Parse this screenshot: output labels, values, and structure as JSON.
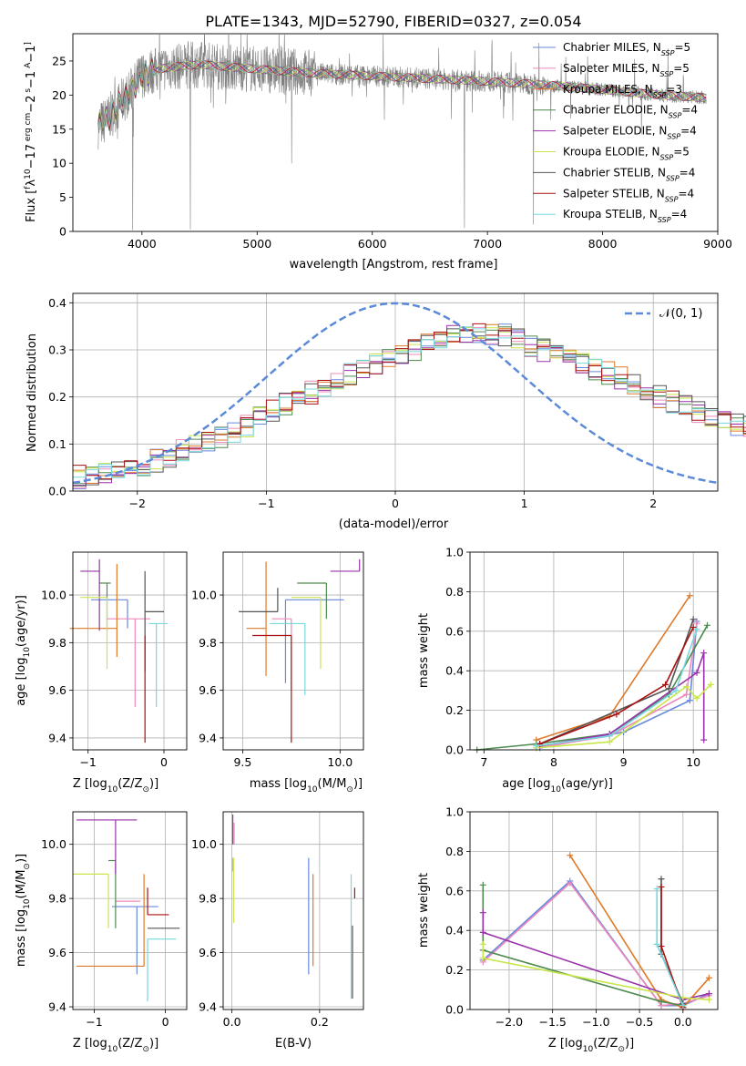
{
  "title": "PLATE=1343, MJD=52790, FIBERID=0327, z=0.054",
  "models": [
    {
      "name": "Chabrier MILES",
      "nssp": "5",
      "color": "#6688dd"
    },
    {
      "name": "Salpeter MILES",
      "nssp": "5",
      "color": "#ee88bb"
    },
    {
      "name": "Kroupa MILES",
      "nssp": "3",
      "color": "#e07a28"
    },
    {
      "name": "Chabrier ELODIE",
      "nssp": "4",
      "color": "#4f8a4f"
    },
    {
      "name": "Salpeter ELODIE",
      "nssp": "4",
      "color": "#9933aa"
    },
    {
      "name": "Kroupa ELODIE",
      "nssp": "5",
      "color": "#c8e64a"
    },
    {
      "name": "Chabrier STELIB",
      "nssp": "4",
      "color": "#555555"
    },
    {
      "name": "Salpeter STELIB",
      "nssp": "4",
      "color": "#aa1111"
    },
    {
      "name": "Kroupa STELIB",
      "nssp": "4",
      "color": "#77d8dd"
    }
  ],
  "chart_data": [
    {
      "id": "spectrum",
      "type": "line",
      "xlabel": "wavelength [Angstrom, rest frame]",
      "ylabel_parts": [
        "Flux [",
        "f",
        "λ",
        "10",
        "−17",
        " erg cm",
        "−2",
        " s",
        "−1",
        " A",
        "−1",
        "]"
      ],
      "xlim": [
        3400,
        9000
      ],
      "ylim": [
        0,
        29
      ],
      "xticks": [
        4000,
        5000,
        6000,
        7000,
        8000,
        9000
      ],
      "yticks": [
        0,
        5,
        10,
        15,
        20,
        25
      ],
      "legend_placement": "right",
      "nssp_label": [
        "N",
        "SSP",
        "="
      ],
      "data_color": "#808080",
      "continuum_x": [
        3620,
        3700,
        3800,
        3900,
        4000,
        4200,
        4500,
        5000,
        5500,
        6000,
        6500,
        7000,
        7500,
        8000,
        8500,
        8900
      ],
      "continuum_y": [
        15.5,
        16.5,
        18.5,
        20.5,
        23.0,
        24.0,
        24.5,
        23.8,
        23.2,
        22.8,
        22.4,
        22.0,
        21.5,
        20.8,
        20.0,
        19.6
      ],
      "data_dips": [
        [
          3920,
          0.2
        ],
        [
          4420,
          0.3
        ],
        [
          5300,
          10.0
        ],
        [
          6800,
          0.5
        ],
        [
          7400,
          1.0
        ]
      ]
    },
    {
      "id": "residuals",
      "type": "histogram",
      "xlabel": "(data-model)/error",
      "ylabel": "Normed distribution",
      "xlim": [
        -2.5,
        2.5
      ],
      "ylim": [
        0,
        0.42
      ],
      "xticks": [
        -2,
        -1,
        0,
        1,
        2
      ],
      "yticks": [
        0.0,
        0.1,
        0.2,
        0.3,
        0.4
      ],
      "grid": true,
      "legend_placement": "top-right",
      "gauss_label": "𝒩(0, 1)",
      "gauss_color": "#5b8ad8",
      "bin_width": 0.1,
      "hist_envelope": [
        0.03,
        0.035,
        0.04,
        0.045,
        0.05,
        0.055,
        0.065,
        0.075,
        0.085,
        0.095,
        0.105,
        0.115,
        0.125,
        0.14,
        0.155,
        0.17,
        0.185,
        0.2,
        0.21,
        0.22,
        0.235,
        0.25,
        0.26,
        0.27,
        0.28,
        0.29,
        0.3,
        0.31,
        0.32,
        0.33,
        0.34,
        0.34,
        0.335,
        0.33,
        0.32,
        0.31,
        0.3,
        0.29,
        0.28,
        0.27,
        0.26,
        0.25,
        0.24,
        0.225,
        0.21,
        0.2,
        0.19,
        0.18,
        0.17,
        0.16,
        0.15,
        0.14,
        0.135,
        0.13,
        0.12,
        0.11,
        0.105,
        0.1,
        0.09,
        0.085,
        0.075,
        0.07,
        0.065,
        0.055,
        0.05,
        0.045,
        0.04,
        0.035,
        0.03,
        0.03
      ]
    },
    {
      "id": "age_vs_Z",
      "type": "errorbar",
      "xlabel": [
        "Z [log",
        "10",
        "(Z/Z",
        "⊙",
        ")]"
      ],
      "ylabel": [
        "age  [log",
        "10",
        "(age/yr)]"
      ],
      "xlim": [
        -1.2,
        0.3
      ],
      "ylim": [
        9.35,
        10.18
      ],
      "xticks": [
        -1,
        0
      ],
      "yticks": [
        9.4,
        9.6,
        9.8,
        10.0
      ],
      "points": [
        {
          "x": -0.48,
          "xerr": [
            0.48,
            0.0
          ],
          "y": 9.98,
          "yerr": [
            0.12,
            0.0
          ]
        },
        {
          "x": -0.38,
          "xerr": [
            0.38,
            0.2
          ],
          "y": 9.9,
          "yerr": [
            0.37,
            0.0
          ]
        },
        {
          "x": -0.62,
          "xerr": [
            0.62,
            0.0
          ],
          "y": 9.86,
          "yerr": [
            0.12,
            0.27
          ]
        },
        {
          "x": -0.75,
          "xerr": [
            0.1,
            0.05
          ],
          "y": 10.05,
          "yerr": [
            0.2,
            0.0
          ]
        },
        {
          "x": -0.85,
          "xerr": [
            0.25,
            0.0
          ],
          "y": 10.1,
          "yerr": [
            0.25,
            0.05
          ]
        },
        {
          "x": -0.75,
          "xerr": [
            0.35,
            0.0
          ],
          "y": 9.99,
          "yerr": [
            0.3,
            0.0
          ]
        },
        {
          "x": -0.25,
          "xerr": [
            0.0,
            0.25
          ],
          "y": 9.93,
          "yerr": [
            0.25,
            0.17
          ]
        },
        {
          "x": -0.25,
          "xerr": [
            0.0,
            0.0
          ],
          "y": 9.83,
          "yerr": [
            0.45,
            0.0
          ]
        },
        {
          "x": -0.1,
          "xerr": [
            0.1,
            0.15
          ],
          "y": 9.88,
          "yerr": [
            0.35,
            0.0
          ]
        }
      ]
    },
    {
      "id": "age_vs_mass",
      "type": "errorbar",
      "xlabel": [
        "mass [log",
        "10",
        "(M/M",
        "⊙",
        ")]"
      ],
      "xlim": [
        9.4,
        10.12
      ],
      "ylim": [
        9.35,
        10.18
      ],
      "xticks": [
        9.5,
        10.0
      ],
      "yticks": [
        9.4,
        9.6,
        9.8,
        10.0
      ],
      "points": [
        {
          "x": 9.72,
          "xerr": [
            0.0,
            0.3
          ],
          "y": 9.98,
          "yerr": [
            0.35,
            0.0
          ]
        },
        {
          "x": 9.75,
          "xerr": [
            0.1,
            0.0
          ],
          "y": 9.9,
          "yerr": [
            0.3,
            0.0
          ]
        },
        {
          "x": 9.62,
          "xerr": [
            0.1,
            0.0
          ],
          "y": 9.86,
          "yerr": [
            0.2,
            0.28
          ]
        },
        {
          "x": 9.93,
          "xerr": [
            0.15,
            0.0
          ],
          "y": 10.05,
          "yerr": [
            0.15,
            0.0
          ]
        },
        {
          "x": 10.1,
          "xerr": [
            0.15,
            0.0
          ],
          "y": 10.1,
          "yerr": [
            0.0,
            0.05
          ]
        },
        {
          "x": 9.9,
          "xerr": [
            0.15,
            0.0
          ],
          "y": 9.99,
          "yerr": [
            0.3,
            0.0
          ]
        },
        {
          "x": 9.68,
          "xerr": [
            0.2,
            0.0
          ],
          "y": 9.93,
          "yerr": [
            0.0,
            0.1
          ]
        },
        {
          "x": 9.75,
          "xerr": [
            0.2,
            0.0
          ],
          "y": 9.83,
          "yerr": [
            0.45,
            0.0
          ]
        },
        {
          "x": 9.82,
          "xerr": [
            0.18,
            0.0
          ],
          "y": 9.88,
          "yerr": [
            0.3,
            0.0
          ]
        }
      ]
    },
    {
      "id": "massweight_vs_age",
      "type": "line",
      "xlabel": [
        "age  [log",
        "10",
        "(age/yr)]"
      ],
      "ylabel": "mass weight",
      "xlim": [
        6.8,
        10.35
      ],
      "ylim": [
        0,
        1.0
      ],
      "xticks": [
        7,
        8,
        9,
        10
      ],
      "yticks": [
        0.0,
        0.2,
        0.4,
        0.6,
        0.8,
        1.0
      ],
      "grid": true,
      "series": [
        {
          "x": [
            7.8,
            9.0,
            9.95,
            10.05
          ],
          "y": [
            0.01,
            0.09,
            0.25,
            0.65
          ]
        },
        {
          "x": [
            7.75,
            8.8,
            9.9,
            10.05
          ],
          "y": [
            0.01,
            0.07,
            0.28,
            0.64
          ]
        },
        {
          "x": [
            7.75,
            8.8,
            9.95
          ],
          "y": [
            0.05,
            0.17,
            0.78
          ]
        },
        {
          "x": [
            6.9,
            7.75,
            8.8,
            9.65,
            10.2
          ],
          "y": [
            0.0,
            0.03,
            0.08,
            0.28,
            0.63
          ]
        },
        {
          "x": [
            7.8,
            8.8,
            10.05,
            10.15,
            10.15
          ],
          "y": [
            0.02,
            0.08,
            0.39,
            0.49,
            0.05
          ]
        },
        {
          "x": [
            7.75,
            8.8,
            9.9,
            10.05,
            10.25
          ],
          "y": [
            0.01,
            0.04,
            0.32,
            0.26,
            0.33
          ]
        },
        {
          "x": [
            7.8,
            9.65,
            10.0
          ],
          "y": [
            0.03,
            0.31,
            0.66
          ]
        },
        {
          "x": [
            7.8,
            8.9,
            9.6,
            10.0
          ],
          "y": [
            0.03,
            0.18,
            0.33,
            0.62
          ]
        },
        {
          "x": [
            7.75,
            8.8,
            9.75,
            10.05
          ],
          "y": [
            0.02,
            0.07,
            0.3,
            0.61
          ]
        }
      ]
    },
    {
      "id": "mass_vs_Z",
      "type": "errorbar",
      "xlabel": [
        "Z [log",
        "10",
        "(Z/Z",
        "⊙",
        ")]"
      ],
      "ylabel": [
        "mass [log",
        "10",
        "(M/M",
        "⊙",
        ")]"
      ],
      "xlim": [
        -1.3,
        0.3
      ],
      "ylim": [
        9.39,
        10.12
      ],
      "xticks": [
        -1,
        0
      ],
      "yticks": [
        9.4,
        9.6,
        9.8,
        10.0
      ],
      "points": [
        {
          "x": -0.4,
          "xerr": [
            0.35,
            0.3
          ],
          "y": 9.77,
          "yerr": [
            0.25,
            0.0
          ]
        },
        {
          "x": -0.35,
          "xerr": [
            0.35,
            0.0
          ],
          "y": 9.79,
          "yerr": [
            0.0,
            0.0
          ]
        },
        {
          "x": -0.3,
          "xerr": [
            0.95,
            0.0
          ],
          "y": 9.55,
          "yerr": [
            0.0,
            0.34
          ]
        },
        {
          "x": -0.7,
          "xerr": [
            0.1,
            0.0
          ],
          "y": 9.94,
          "yerr": [
            0.25,
            0.0
          ]
        },
        {
          "x": -0.7,
          "xerr": [
            0.55,
            0.3
          ],
          "y": 10.09,
          "yerr": [
            0.2,
            0.0
          ]
        },
        {
          "x": -0.8,
          "xerr": [
            0.5,
            0.0
          ],
          "y": 9.89,
          "yerr": [
            0.2,
            0.0
          ]
        },
        {
          "x": -0.25,
          "xerr": [
            0.0,
            0.45
          ],
          "y": 9.69,
          "yerr": [
            0.0,
            0.0
          ]
        },
        {
          "x": -0.25,
          "xerr": [
            0.0,
            0.3
          ],
          "y": 9.74,
          "yerr": [
            0.0,
            0.1
          ]
        },
        {
          "x": -0.25,
          "xerr": [
            0.0,
            0.4
          ],
          "y": 9.65,
          "yerr": [
            0.23,
            0.0
          ]
        }
      ]
    },
    {
      "id": "mass_vs_EBV",
      "type": "errorbar",
      "xlabel": "E(B-V)",
      "xlim": [
        -0.02,
        0.3
      ],
      "ylim": [
        9.39,
        10.12
      ],
      "xticks": [
        0.0,
        0.2
      ],
      "yticks": [
        9.4,
        9.6,
        9.8,
        10.0
      ],
      "points": [
        {
          "x": 0.175,
          "xerr": [
            0,
            0
          ],
          "y": 9.75,
          "yerr": [
            0.23,
            0.2
          ]
        },
        {
          "x": 0.005,
          "xerr": [
            0,
            0
          ],
          "y": 10.0,
          "yerr": [
            0.0,
            0.08
          ]
        },
        {
          "x": 0.185,
          "xerr": [
            0,
            0
          ],
          "y": 9.7,
          "yerr": [
            0.15,
            0.19
          ]
        },
        {
          "x": 0.003,
          "xerr": [
            0,
            0
          ],
          "y": 9.95,
          "yerr": [
            0.05,
            0.0
          ]
        },
        {
          "x": 0.002,
          "xerr": [
            0,
            0
          ],
          "y": 10.05,
          "yerr": [
            0.05,
            0.06
          ]
        },
        {
          "x": 0.004,
          "xerr": [
            0,
            0
          ],
          "y": 9.85,
          "yerr": [
            0.14,
            0.1
          ]
        },
        {
          "x": 0.275,
          "xerr": [
            0,
            0
          ],
          "y": 9.7,
          "yerr": [
            0.27,
            0.0
          ]
        },
        {
          "x": 0.28,
          "xerr": [
            0,
            0
          ],
          "y": 9.8,
          "yerr": [
            0.0,
            0.04
          ]
        },
        {
          "x": 0.272,
          "xerr": [
            0,
            0
          ],
          "y": 9.65,
          "yerr": [
            0.22,
            0.24
          ]
        }
      ]
    },
    {
      "id": "massweight_vs_Z",
      "type": "line",
      "xlabel": [
        "Z [log",
        "10",
        "(Z/Z",
        "⊙",
        ")]"
      ],
      "ylabel": "mass weight",
      "xlim": [
        -2.45,
        0.4
      ],
      "ylim": [
        0,
        1.0
      ],
      "xticks": [
        -2.0,
        -1.5,
        -1.0,
        -0.5,
        0.0
      ],
      "yticks": [
        0.0,
        0.2,
        0.4,
        0.6,
        0.8,
        1.0
      ],
      "grid": true,
      "series": [
        {
          "x": [
            -2.3,
            -1.3,
            -0.25,
            0.0,
            0.3
          ],
          "y": [
            0.25,
            0.65,
            0.02,
            0.02,
            0.08
          ]
        },
        {
          "x": [
            -2.3,
            -1.3,
            -0.25,
            0.0,
            0.3
          ],
          "y": [
            0.24,
            0.64,
            0.02,
            0.03,
            0.07
          ]
        },
        {
          "x": [
            -1.3,
            -0.25,
            0.0,
            0.3
          ],
          "y": [
            0.78,
            0.05,
            0.01,
            0.16
          ]
        },
        {
          "x": [
            -2.3,
            -2.3,
            -0.25,
            0.0
          ],
          "y": [
            0.63,
            0.3,
            0.04,
            0.02
          ]
        },
        {
          "x": [
            -2.3,
            -2.3,
            0.0,
            0.3
          ],
          "y": [
            0.49,
            0.39,
            0.05,
            0.08
          ]
        },
        {
          "x": [
            -2.3,
            -2.3,
            0.0,
            0.3
          ],
          "y": [
            0.33,
            0.26,
            0.06,
            0.05
          ]
        },
        {
          "x": [
            -0.25,
            -0.25,
            0.0
          ],
          "y": [
            0.66,
            0.28,
            0.03
          ]
        },
        {
          "x": [
            -0.25,
            -0.25,
            0.0
          ],
          "y": [
            0.62,
            0.32,
            0.01
          ]
        },
        {
          "x": [
            -0.3,
            -0.3,
            0.0
          ],
          "y": [
            0.61,
            0.33,
            0.02
          ]
        }
      ]
    }
  ]
}
